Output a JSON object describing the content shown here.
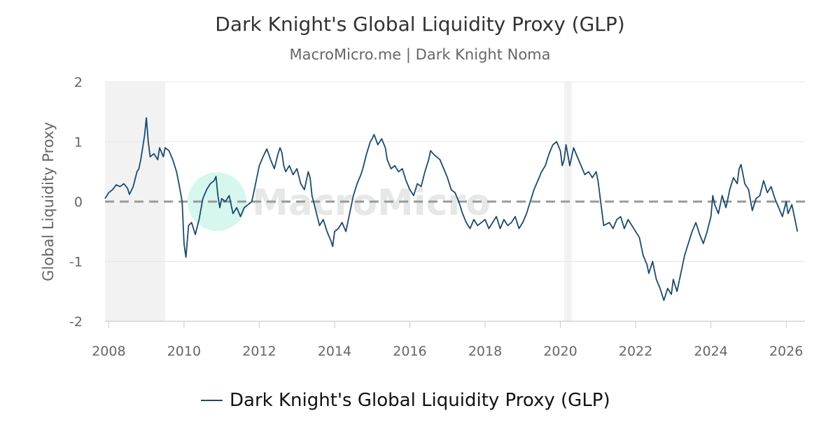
{
  "chart_data": {
    "type": "line",
    "title": "Dark Knight's Global Liquidity Proxy (GLP)",
    "subtitle": "MacroMicro.me | Dark Knight Noma",
    "ylabel": "Global Liquidity Proxy",
    "xlabel": "",
    "xlim": [
      2007.9,
      2026.5
    ],
    "ylim": [
      -2,
      2
    ],
    "x_ticks": [
      "2008",
      "2010",
      "2012",
      "2014",
      "2016",
      "2018",
      "2020",
      "2022",
      "2024",
      "2026"
    ],
    "y_ticks": [
      "2",
      "1",
      "0",
      "-1",
      "-2"
    ],
    "reference_line": {
      "y": 0,
      "style": "dashed",
      "color": "#999999"
    },
    "shaded_ranges": [
      [
        2007.9,
        2009.5
      ],
      [
        2020.1,
        2020.3
      ]
    ],
    "grid": true,
    "legend_position": "bottom-center",
    "watermark": "MacroMicro",
    "series": [
      {
        "name": "Dark Knight's Global Liquidity Proxy (GLP)",
        "color": "#1b4a6e",
        "points": [
          [
            2007.9,
            0.05
          ],
          [
            2008.0,
            0.15
          ],
          [
            2008.1,
            0.2
          ],
          [
            2008.2,
            0.28
          ],
          [
            2008.3,
            0.25
          ],
          [
            2008.4,
            0.3
          ],
          [
            2008.5,
            0.22
          ],
          [
            2008.55,
            0.12
          ],
          [
            2008.65,
            0.25
          ],
          [
            2008.75,
            0.5
          ],
          [
            2008.8,
            0.55
          ],
          [
            2008.85,
            0.7
          ],
          [
            2008.95,
            1.1
          ],
          [
            2009.0,
            1.4
          ],
          [
            2009.05,
            1.0
          ],
          [
            2009.1,
            0.75
          ],
          [
            2009.2,
            0.8
          ],
          [
            2009.3,
            0.7
          ],
          [
            2009.35,
            0.9
          ],
          [
            2009.45,
            0.75
          ],
          [
            2009.5,
            0.9
          ],
          [
            2009.6,
            0.85
          ],
          [
            2009.7,
            0.7
          ],
          [
            2009.8,
            0.5
          ],
          [
            2009.85,
            0.35
          ],
          [
            2009.95,
            0.0
          ],
          [
            2010.0,
            -0.7
          ],
          [
            2010.05,
            -0.93
          ],
          [
            2010.12,
            -0.4
          ],
          [
            2010.2,
            -0.35
          ],
          [
            2010.3,
            -0.55
          ],
          [
            2010.4,
            -0.3
          ],
          [
            2010.5,
            0.05
          ],
          [
            2010.6,
            0.2
          ],
          [
            2010.7,
            0.3
          ],
          [
            2010.8,
            0.35
          ],
          [
            2010.85,
            0.42
          ],
          [
            2010.9,
            0.1
          ],
          [
            2010.95,
            -0.1
          ],
          [
            2011.0,
            0.05
          ],
          [
            2011.1,
            0.0
          ],
          [
            2011.2,
            0.1
          ],
          [
            2011.3,
            -0.2
          ],
          [
            2011.4,
            -0.1
          ],
          [
            2011.5,
            -0.25
          ],
          [
            2011.6,
            -0.1
          ],
          [
            2011.7,
            -0.05
          ],
          [
            2011.8,
            0.0
          ],
          [
            2011.9,
            0.3
          ],
          [
            2012.0,
            0.6
          ],
          [
            2012.1,
            0.75
          ],
          [
            2012.2,
            0.88
          ],
          [
            2012.3,
            0.7
          ],
          [
            2012.4,
            0.55
          ],
          [
            2012.5,
            0.8
          ],
          [
            2012.55,
            0.9
          ],
          [
            2012.6,
            0.82
          ],
          [
            2012.65,
            0.6
          ],
          [
            2012.7,
            0.5
          ],
          [
            2012.8,
            0.6
          ],
          [
            2012.9,
            0.45
          ],
          [
            2013.0,
            0.55
          ],
          [
            2013.1,
            0.3
          ],
          [
            2013.2,
            0.2
          ],
          [
            2013.3,
            0.5
          ],
          [
            2013.35,
            0.4
          ],
          [
            2013.4,
            0.1
          ],
          [
            2013.5,
            -0.15
          ],
          [
            2013.6,
            -0.4
          ],
          [
            2013.7,
            -0.3
          ],
          [
            2013.8,
            -0.5
          ],
          [
            2013.9,
            -0.65
          ],
          [
            2013.95,
            -0.75
          ],
          [
            2014.0,
            -0.5
          ],
          [
            2014.1,
            -0.45
          ],
          [
            2014.2,
            -0.35
          ],
          [
            2014.3,
            -0.5
          ],
          [
            2014.4,
            -0.2
          ],
          [
            2014.5,
            0.1
          ],
          [
            2014.6,
            0.3
          ],
          [
            2014.7,
            0.45
          ],
          [
            2014.75,
            0.55
          ],
          [
            2014.85,
            0.8
          ],
          [
            2014.95,
            1.0
          ],
          [
            2015.0,
            1.05
          ],
          [
            2015.05,
            1.12
          ],
          [
            2015.15,
            0.95
          ],
          [
            2015.25,
            1.05
          ],
          [
            2015.35,
            0.9
          ],
          [
            2015.4,
            0.7
          ],
          [
            2015.5,
            0.55
          ],
          [
            2015.6,
            0.6
          ],
          [
            2015.7,
            0.5
          ],
          [
            2015.8,
            0.55
          ],
          [
            2015.9,
            0.35
          ],
          [
            2016.0,
            0.2
          ],
          [
            2016.1,
            0.1
          ],
          [
            2016.2,
            0.3
          ],
          [
            2016.3,
            0.25
          ],
          [
            2016.4,
            0.5
          ],
          [
            2016.5,
            0.7
          ],
          [
            2016.55,
            0.85
          ],
          [
            2016.65,
            0.78
          ],
          [
            2016.8,
            0.7
          ],
          [
            2016.9,
            0.55
          ],
          [
            2017.0,
            0.4
          ],
          [
            2017.1,
            0.2
          ],
          [
            2017.2,
            0.15
          ],
          [
            2017.3,
            0.0
          ],
          [
            2017.4,
            -0.2
          ],
          [
            2017.5,
            -0.35
          ],
          [
            2017.6,
            -0.45
          ],
          [
            2017.7,
            -0.3
          ],
          [
            2017.8,
            -0.4
          ],
          [
            2017.9,
            -0.35
          ],
          [
            2018.0,
            -0.3
          ],
          [
            2018.1,
            -0.45
          ],
          [
            2018.2,
            -0.35
          ],
          [
            2018.3,
            -0.25
          ],
          [
            2018.4,
            -0.45
          ],
          [
            2018.5,
            -0.3
          ],
          [
            2018.6,
            -0.4
          ],
          [
            2018.7,
            -0.35
          ],
          [
            2018.8,
            -0.25
          ],
          [
            2018.9,
            -0.45
          ],
          [
            2019.0,
            -0.35
          ],
          [
            2019.1,
            -0.2
          ],
          [
            2019.2,
            0.0
          ],
          [
            2019.3,
            0.2
          ],
          [
            2019.4,
            0.35
          ],
          [
            2019.5,
            0.5
          ],
          [
            2019.6,
            0.6
          ],
          [
            2019.7,
            0.8
          ],
          [
            2019.8,
            0.95
          ],
          [
            2019.9,
            1.0
          ],
          [
            2020.0,
            0.85
          ],
          [
            2020.05,
            0.6
          ],
          [
            2020.1,
            0.7
          ],
          [
            2020.15,
            0.95
          ],
          [
            2020.25,
            0.6
          ],
          [
            2020.35,
            0.9
          ],
          [
            2020.45,
            0.75
          ],
          [
            2020.55,
            0.6
          ],
          [
            2020.65,
            0.45
          ],
          [
            2020.75,
            0.5
          ],
          [
            2020.85,
            0.4
          ],
          [
            2020.95,
            0.5
          ],
          [
            2021.0,
            0.35
          ],
          [
            2021.05,
            0.1
          ],
          [
            2021.1,
            -0.15
          ],
          [
            2021.15,
            -0.4
          ],
          [
            2021.3,
            -0.35
          ],
          [
            2021.4,
            -0.45
          ],
          [
            2021.5,
            -0.3
          ],
          [
            2021.6,
            -0.25
          ],
          [
            2021.7,
            -0.45
          ],
          [
            2021.8,
            -0.3
          ],
          [
            2021.9,
            -0.4
          ],
          [
            2022.0,
            -0.5
          ],
          [
            2022.1,
            -0.6
          ],
          [
            2022.2,
            -0.9
          ],
          [
            2022.3,
            -1.05
          ],
          [
            2022.35,
            -1.2
          ],
          [
            2022.45,
            -1.0
          ],
          [
            2022.55,
            -1.3
          ],
          [
            2022.65,
            -1.45
          ],
          [
            2022.75,
            -1.65
          ],
          [
            2022.85,
            -1.45
          ],
          [
            2022.95,
            -1.55
          ],
          [
            2023.0,
            -1.3
          ],
          [
            2023.1,
            -1.5
          ],
          [
            2023.2,
            -1.2
          ],
          [
            2023.3,
            -0.9
          ],
          [
            2023.4,
            -0.7
          ],
          [
            2023.5,
            -0.5
          ],
          [
            2023.6,
            -0.35
          ],
          [
            2023.7,
            -0.55
          ],
          [
            2023.8,
            -0.7
          ],
          [
            2023.9,
            -0.5
          ],
          [
            2024.0,
            -0.25
          ],
          [
            2024.05,
            0.1
          ],
          [
            2024.1,
            -0.05
          ],
          [
            2024.2,
            -0.2
          ],
          [
            2024.3,
            0.1
          ],
          [
            2024.4,
            -0.1
          ],
          [
            2024.5,
            0.2
          ],
          [
            2024.6,
            0.4
          ],
          [
            2024.7,
            0.3
          ],
          [
            2024.75,
            0.55
          ],
          [
            2024.8,
            0.62
          ],
          [
            2024.9,
            0.3
          ],
          [
            2025.0,
            0.2
          ],
          [
            2025.1,
            -0.15
          ],
          [
            2025.2,
            0.05
          ],
          [
            2025.3,
            0.1
          ],
          [
            2025.4,
            0.35
          ],
          [
            2025.5,
            0.15
          ],
          [
            2025.6,
            0.25
          ],
          [
            2025.7,
            0.05
          ],
          [
            2025.8,
            -0.1
          ],
          [
            2025.9,
            -0.25
          ],
          [
            2026.0,
            0.0
          ],
          [
            2026.05,
            -0.2
          ],
          [
            2026.15,
            -0.05
          ],
          [
            2026.25,
            -0.35
          ],
          [
            2026.3,
            -0.5
          ]
        ]
      }
    ]
  }
}
